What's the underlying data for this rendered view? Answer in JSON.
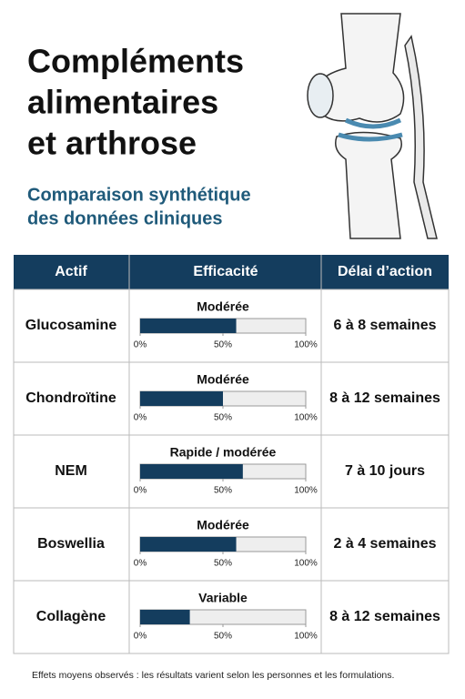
{
  "header": {
    "title_lines": [
      "Compléments",
      "alimentaires",
      "et arthrose"
    ],
    "subtitle_lines": [
      "Comparaison synthétique",
      "des données cliniques"
    ]
  },
  "table": {
    "columns": [
      "Actif",
      "Efficacité",
      "Délai d’action"
    ],
    "scale": {
      "xlim": [
        0,
        100
      ],
      "xticks": [
        {
          "value": 0,
          "label": "0%"
        },
        {
          "value": 50,
          "label": "50%"
        },
        {
          "value": 100,
          "label": "100%"
        }
      ]
    },
    "rows": [
      {
        "name": "Glucosamine",
        "level": "Modérée",
        "efficacy": 58,
        "delay": "6 à 8 semaines"
      },
      {
        "name": "Chondroïtine",
        "level": "Modérée",
        "efficacy": 50,
        "delay": "8 à 12 semaines"
      },
      {
        "name": "NEM",
        "level": "Rapide / modérée",
        "efficacy": 62,
        "delay": "7 à 10 jours"
      },
      {
        "name": "Boswellia",
        "level": "Modérée",
        "efficacy": 58,
        "delay": "2 à 4 semaines"
      },
      {
        "name": "Collagène",
        "level": "Variable",
        "efficacy": 30,
        "delay": "8 à 12 semaines"
      }
    ]
  },
  "footnote": "Effets moyens observés : les résultats varient selon les personnes et les formulations."
}
